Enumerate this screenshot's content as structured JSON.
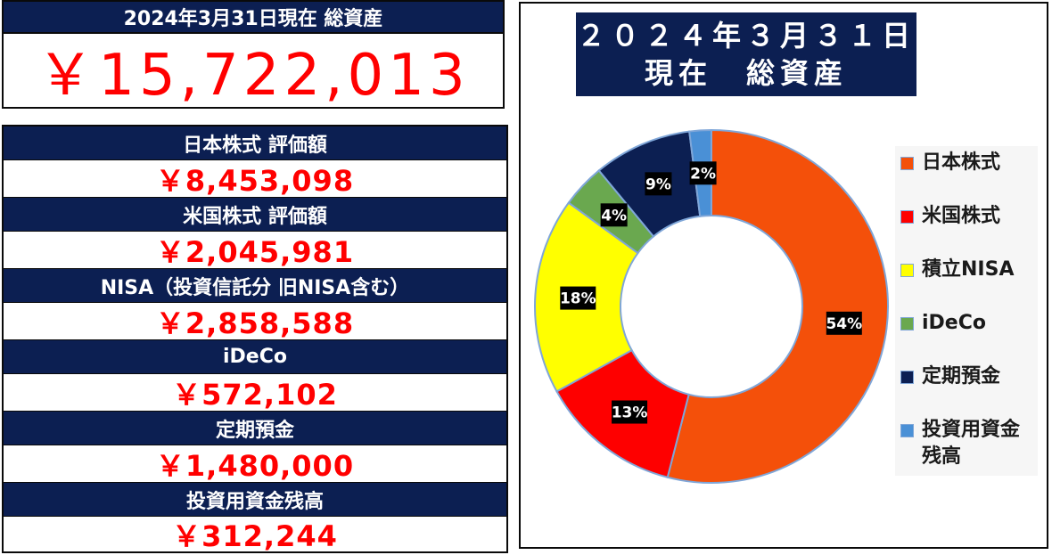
{
  "summary": {
    "title": "2024年3月31日現在 総資産",
    "total": "￥15,722,013"
  },
  "breakdown": [
    {
      "label": "日本株式 評価額",
      "value": "￥8,453,098"
    },
    {
      "label": "米国株式 評価額",
      "value": "￥2,045,981"
    },
    {
      "label": "NISA（投資信託分 旧NISA含む）",
      "value": "￥2,858,588"
    },
    {
      "label": "iDeCo",
      "value": "￥572,102"
    },
    {
      "label": "定期預金",
      "value": "￥1,480,000"
    },
    {
      "label": "投資用資金残高",
      "value": "￥312,244"
    }
  ],
  "chart_data": {
    "type": "pie",
    "style": "donut",
    "title": "２０２４年３月３１日",
    "subtitle": "現在　総資産",
    "categories": [
      "日本株式",
      "米国株式",
      "積立NISA",
      "iDeCo",
      "定期預金",
      "投資用資金\n残高"
    ],
    "values": [
      54,
      13,
      18,
      4,
      9,
      2
    ],
    "value_labels": [
      "54%",
      "13%",
      "18%",
      "4%",
      "9%",
      "2%"
    ],
    "colors": [
      "#f4500a",
      "#fe0000",
      "#ffff00",
      "#6aa84f",
      "#0c1f52",
      "#4a90d6"
    ],
    "legend_position": "right"
  }
}
